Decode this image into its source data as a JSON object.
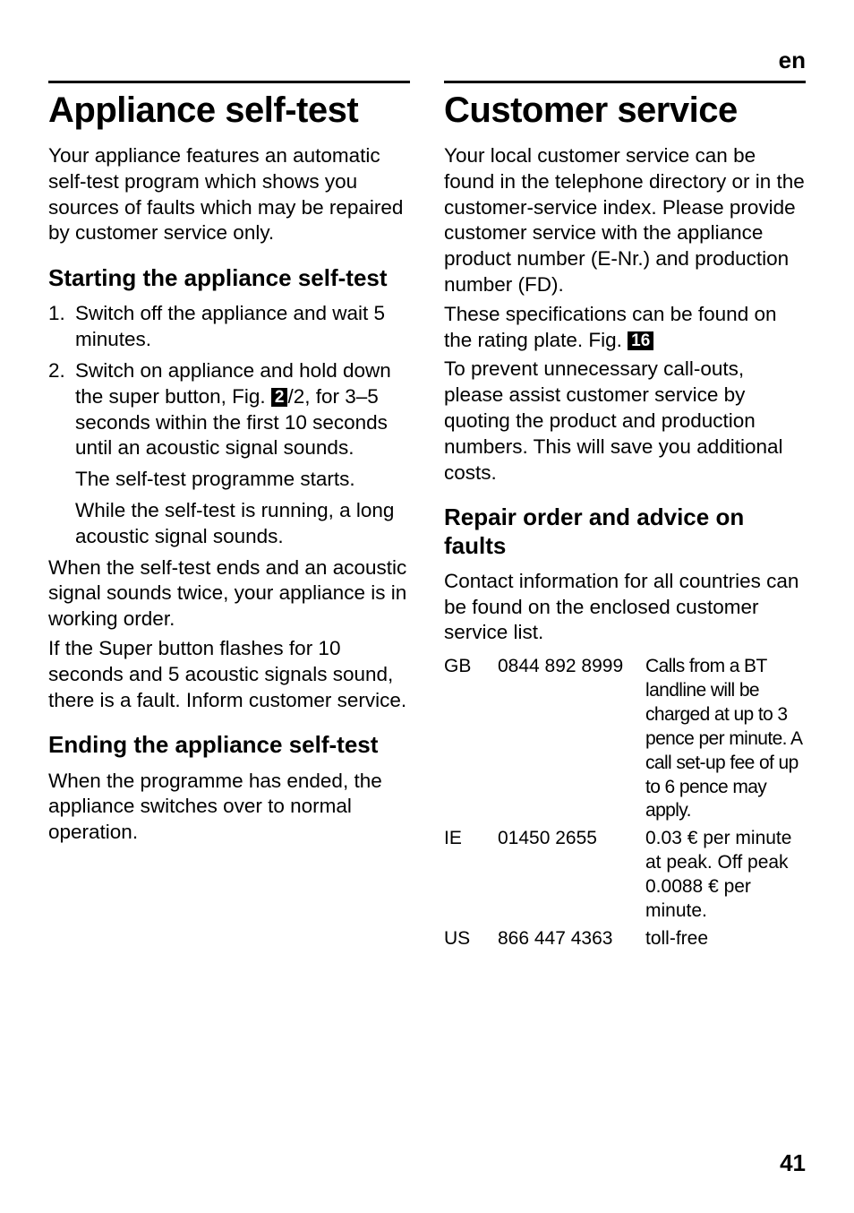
{
  "lang_code": "en",
  "page_number": "41",
  "left": {
    "h1": "Appliance self-test",
    "intro": "Your appliance features an automatic self-test program which shows you sources of faults which may be repaired by customer service only.",
    "h2_start": "Starting the appliance self-test",
    "li1": "Switch off the appliance and wait 5 minutes.",
    "li2_a": "Switch on appliance and hold down the super button, Fig. ",
    "li2_fig": "2",
    "li2_b": "/2, for 3–5 seconds within the first 10 seconds until an acoustic signal sounds.",
    "li2_sub1": "The self-test programme starts.",
    "li2_sub2": "While the self-test is running, a long acoustic signal sounds.",
    "p_after1": "When the self-test ends and an acoustic signal sounds twice, your appliance is in working order.",
    "p_after2": "If the Super button flashes for 10 seconds and 5 acoustic signals sound, there is a fault. Inform customer service.",
    "h2_end": "Ending the appliance self-test",
    "p_end": "When the programme has ended, the appliance switches over to normal operation."
  },
  "right": {
    "h1": "Customer service",
    "p1": "Your local customer service can be found in the telephone directory or in the customer-service index. Please provide customer service with the appliance product number (E-Nr.) and production number (FD).",
    "p2": "These specifications can be found on the rating plate. Fig. ",
    "p2_fig": "16",
    "p3": "To prevent unnecessary call-outs, please assist customer service by quoting the product and production numbers. This will save you additional costs.",
    "h2": "Repair order and advice on faults",
    "p4": "Contact information for all countries can be found on the enclosed customer service list.",
    "contacts": {
      "r1": {
        "code": "GB",
        "phone": "0844 892 8999",
        "note": "Calls from a BT landline will be charged at up to 3 pence per minute. A call set-up fee of up to 6 pence may apply."
      },
      "r2": {
        "code": "IE",
        "phone": "01450 2655",
        "note": "0.03 € per minute at peak. Off peak 0.0088 € per minute."
      },
      "r3": {
        "code": "US",
        "phone": "866 447 4363",
        "note": "toll-free"
      }
    }
  }
}
